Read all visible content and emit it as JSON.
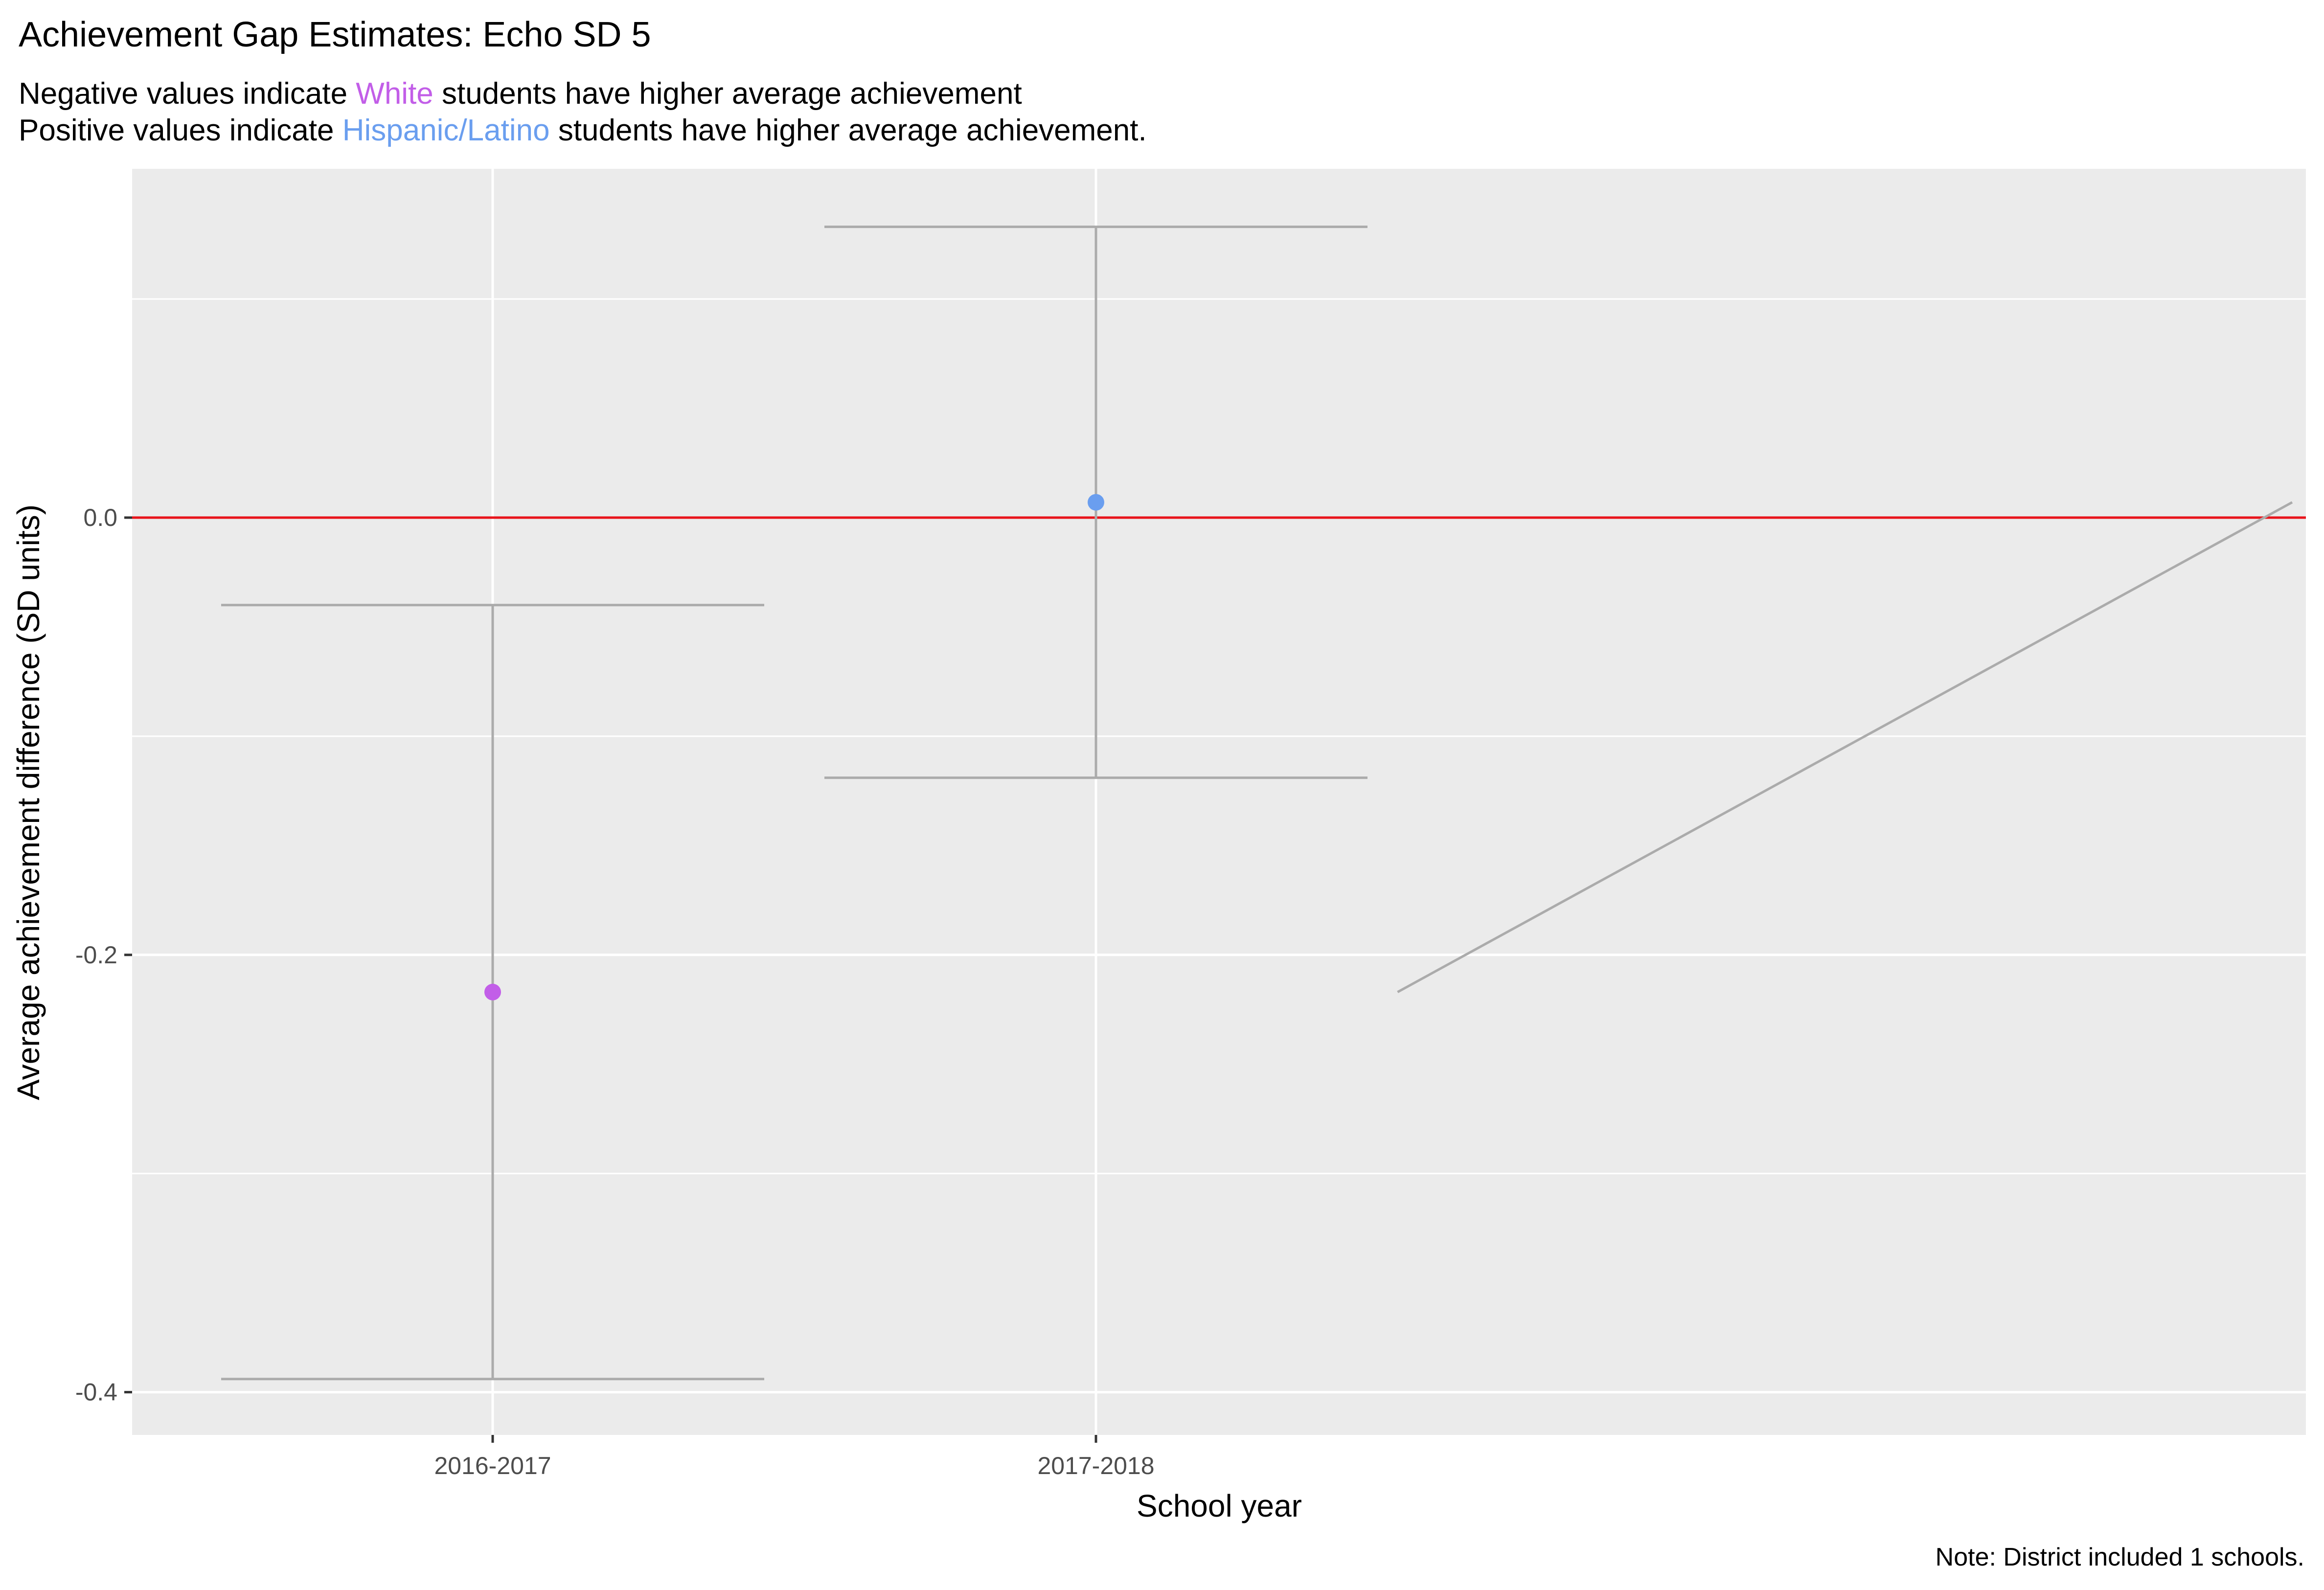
{
  "title": "Achievement Gap Estimates: Echo SD 5",
  "subtitle": {
    "line1": {
      "prefix": "Negative values indicate ",
      "group": "White",
      "suffix": " students have higher average achievement"
    },
    "line2": {
      "prefix": "Positive values indicate ",
      "group": "Hispanic/Latino",
      "suffix": " students have higher average achievement."
    }
  },
  "caption": "Note: District included 1 schools.",
  "colors": {
    "white_group": "#C25EE8",
    "hispanic_group": "#6A9EEF",
    "errorbar": "#ABABAB",
    "reference_line": "#E8141B",
    "panel_bg": "#EBEBEB",
    "grid": "#FFFFFF"
  },
  "chart_data": {
    "type": "scatter",
    "title": "Achievement Gap Estimates: Echo SD 5",
    "xlabel": "School year",
    "ylabel": "Average achievement difference (SD units)",
    "categories": [
      "2016-2017",
      "2017-2018",
      ""
    ],
    "ylim": [
      -0.42,
      0.16
    ],
    "yticks": [
      0.0,
      -0.2,
      -0.4
    ],
    "ytick_labels": [
      "0.0",
      "-0.2",
      "-0.4"
    ],
    "reference_line_y": 0.0,
    "points": [
      {
        "category": "2016-2017",
        "estimate": -0.217,
        "lower": -0.394,
        "upper": -0.04,
        "group": "White"
      },
      {
        "category": "2017-2018",
        "estimate": 0.007,
        "lower": -0.119,
        "upper": 0.133,
        "group": "Hispanic/Latino"
      }
    ],
    "trend_segment": {
      "x_from": 2.5,
      "y_from": -0.217,
      "x_to": 4.0,
      "y_to": 0.007
    }
  }
}
